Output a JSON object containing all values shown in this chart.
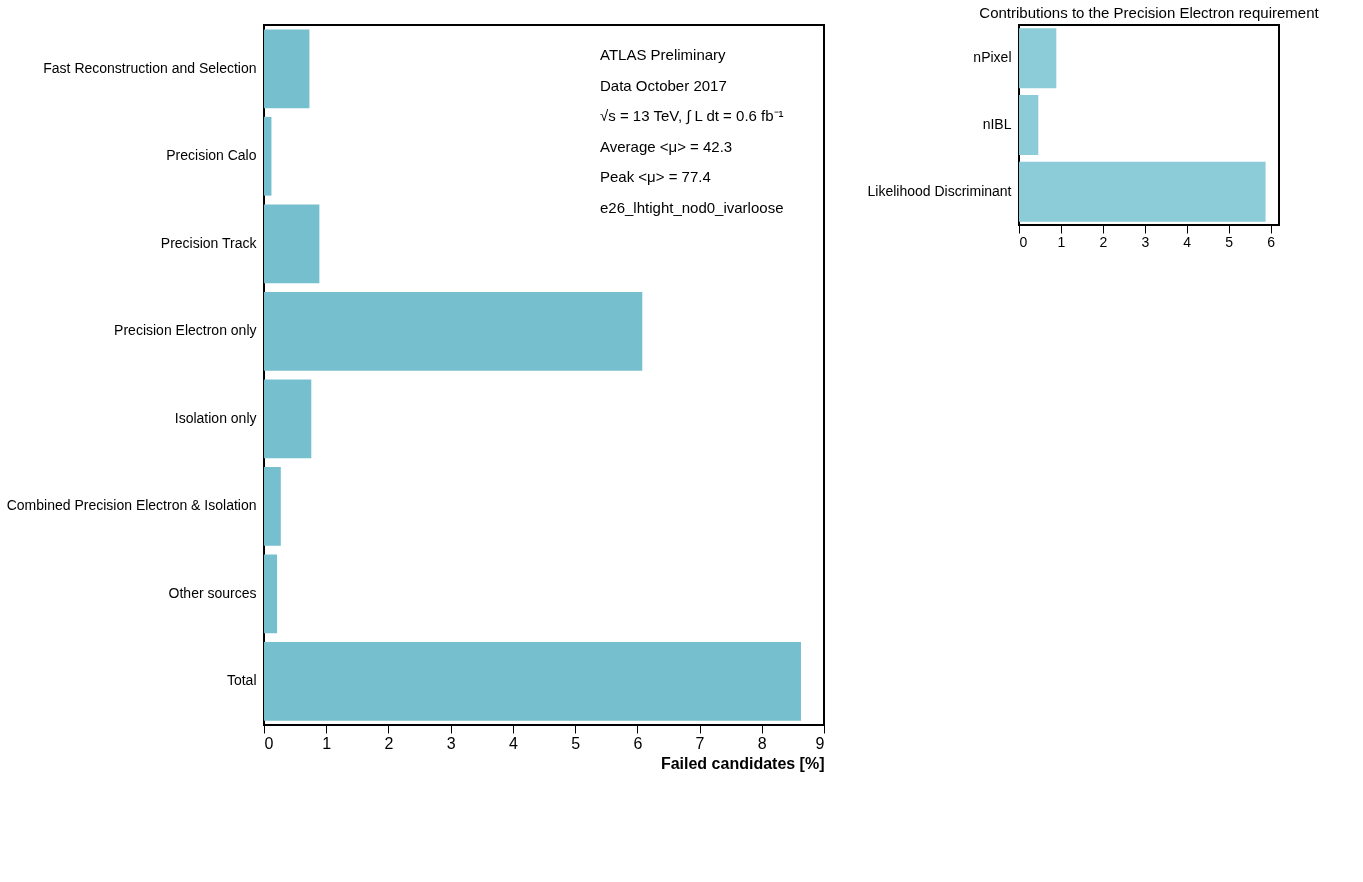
{
  "chart_data": [
    {
      "type": "bar",
      "orientation": "horizontal",
      "xlabel": "Failed candidates [%]",
      "categories": [
        "Fast Reconstruction and Selection",
        "Precision Calo",
        "Precision Track",
        "Precision Electron only",
        "Isolation only",
        "Combined Precision Electron & Isolation",
        "Other sources",
        "Total"
      ],
      "values": [
        0.73,
        0.12,
        0.89,
        6.08,
        0.76,
        0.27,
        0.21,
        8.63
      ],
      "color": "#76bfcf",
      "xlim": [
        0,
        9
      ],
      "xticks": [
        0,
        1,
        2,
        3,
        4,
        5,
        6,
        7,
        8,
        9
      ],
      "grid": false,
      "annotations": [
        "ATLAS Preliminary",
        "Data October 2017",
        "√s = 13 TeV, ∫ L dt = 0.6 fb⁻¹",
        "Average <μ> = 42.3",
        "Peak <μ> = 77.4",
        "e26_lhtight_nod0_ivarloose"
      ]
    },
    {
      "type": "bar",
      "orientation": "horizontal",
      "title": "Contributions to the Precision Electron requirement",
      "categories": [
        "nPixel",
        "nIBL",
        "Likelihood Discriminant"
      ],
      "values": [
        0.89,
        0.46,
        5.88
      ],
      "color": "#8ccbd8",
      "xlim": [
        0,
        6.2
      ],
      "xticks": [
        0,
        1,
        2,
        3,
        4,
        5,
        6
      ],
      "grid": false
    }
  ]
}
